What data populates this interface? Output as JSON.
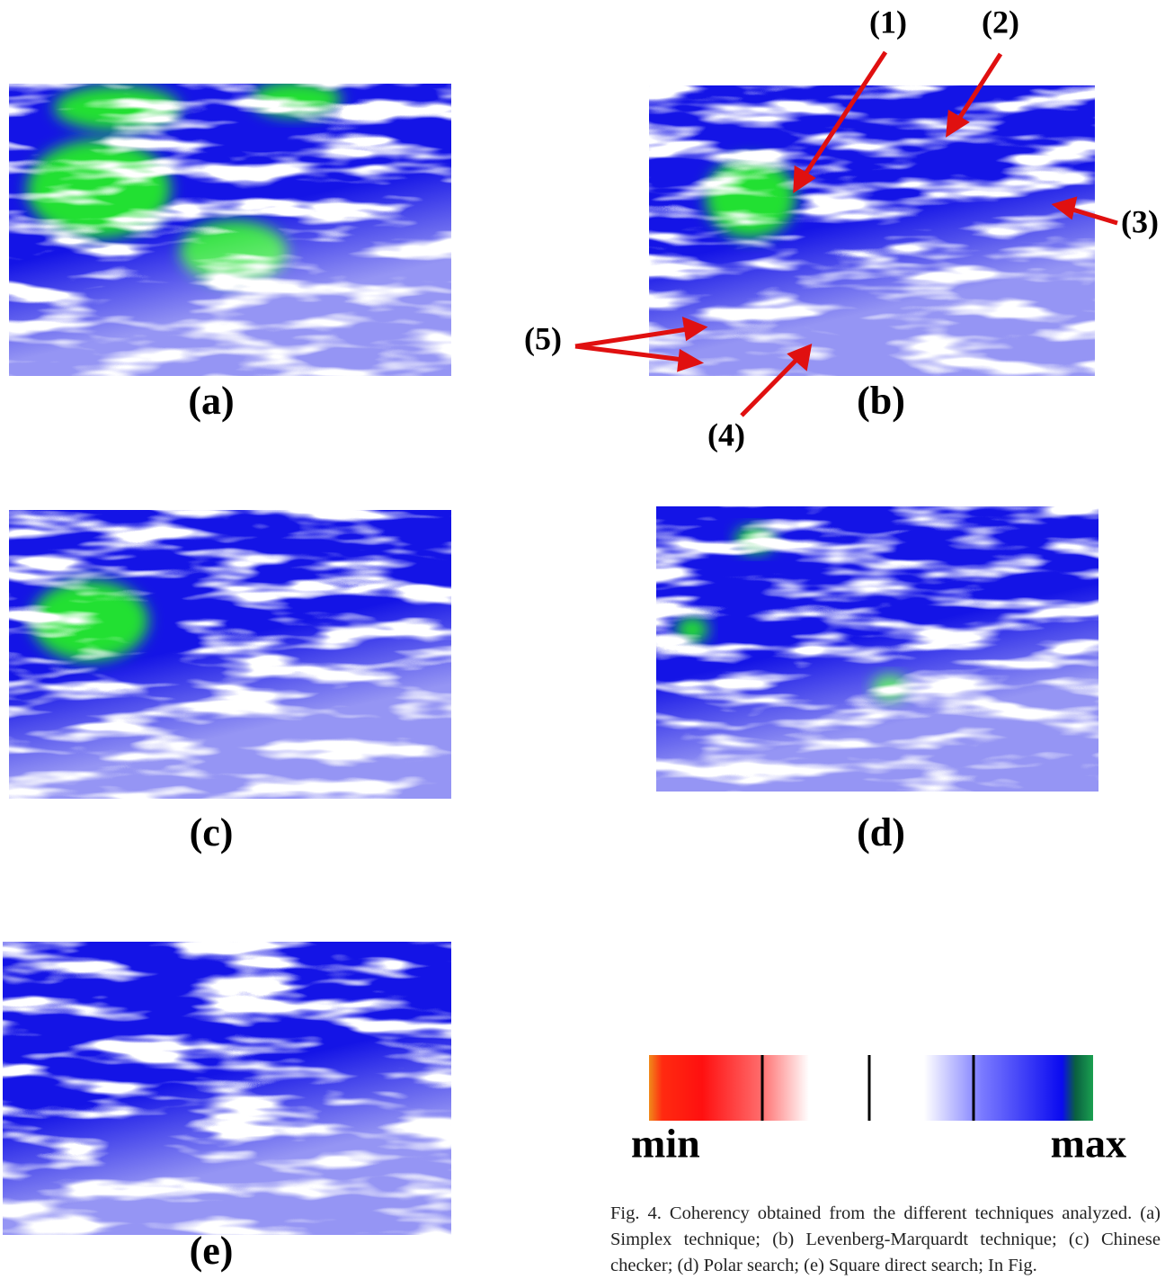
{
  "panels": [
    {
      "label": "(a)"
    },
    {
      "label": "(b)"
    },
    {
      "label": "(c)"
    },
    {
      "label": "(d)"
    },
    {
      "label": "(e)"
    }
  ],
  "annotations": [
    "(1)",
    "(2)",
    "(3)",
    "(4)",
    "(5)"
  ],
  "colorbar": {
    "min": "min",
    "max": "max"
  },
  "caption": "Fig. 4. Coherency obtained from the different techniques analyzed. (a) Simplex technique; (b) Levenberg-Marquardt technique; (c) Chinese checker; (d) Polar search; (e) Square direct search; In Fig."
}
